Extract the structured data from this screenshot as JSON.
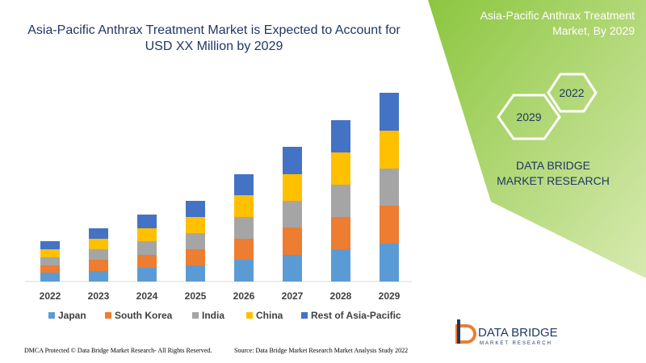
{
  "chart_data": {
    "type": "stacked-bar",
    "title": "Asia-Pacific Anthrax Treatment Market is Expected to Account for USD XX Million by 2029",
    "categories": [
      "2022",
      "2023",
      "2024",
      "2025",
      "2026",
      "2027",
      "2028",
      "2029"
    ],
    "series": [
      {
        "name": "Japan",
        "color": "#5b9bd5",
        "values": [
          11,
          13,
          17,
          20,
          27,
          33,
          40,
          47
        ]
      },
      {
        "name": "South Korea",
        "color": "#ed7d31",
        "values": [
          9,
          14,
          16,
          20,
          26,
          34,
          40,
          47
        ]
      },
      {
        "name": "India",
        "color": "#a5a5a5",
        "values": [
          10,
          13,
          17,
          20,
          27,
          33,
          40,
          46
        ]
      },
      {
        "name": "China",
        "color": "#ffc000",
        "values": [
          10,
          13,
          16,
          20,
          27,
          33,
          40,
          47
        ]
      },
      {
        "name": "Rest of Asia-Pacific",
        "color": "#4472c4",
        "values": [
          10,
          13,
          17,
          20,
          26,
          34,
          40,
          47
        ]
      }
    ],
    "ylim": [
      0,
      240
    ]
  },
  "panel": {
    "title": "Asia-Pacific Anthrax Treatment Market, By 2029",
    "hexagons": [
      "2022",
      "2029"
    ],
    "brand": "DATA BRIDGE MARKET RESEARCH"
  },
  "logo": {
    "name": "DATA BRIDGE",
    "tagline": "MARKET RESEARCH"
  },
  "footer": {
    "left": "DMCA Protected © Data Bridge Market Research- All Rights Reserved.",
    "right": "Source: Data Bridge Market Research Market Analysis Study 2022"
  }
}
